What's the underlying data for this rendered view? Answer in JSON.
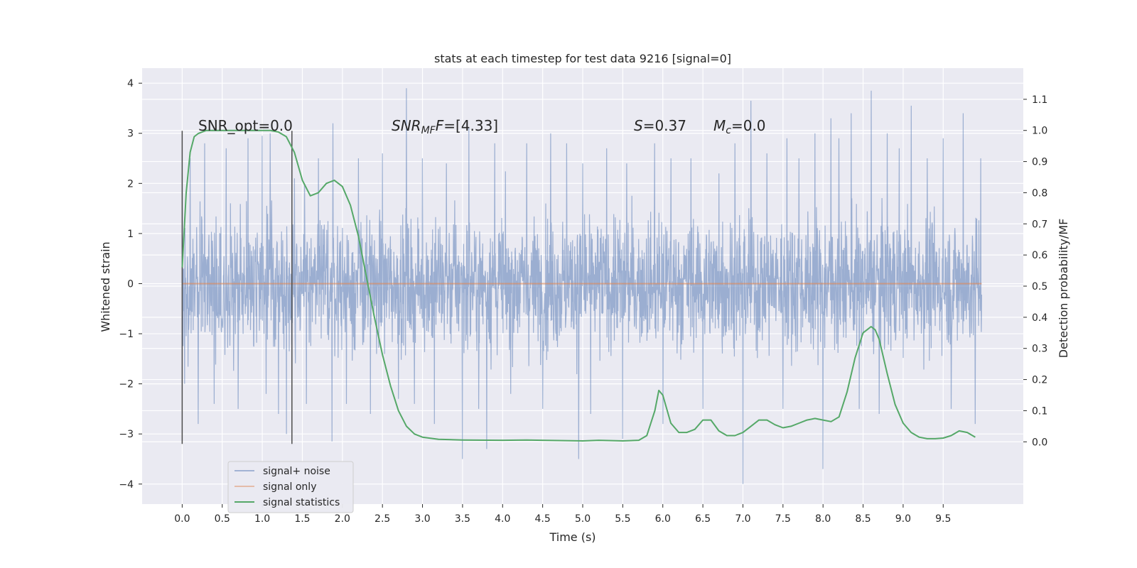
{
  "chart_data": {
    "type": "line",
    "title": "stats at each timestep for test data 9216 [signal=0]",
    "xlabel": "Time (s)",
    "ylabel": "Whitened strain",
    "ylabel_right": "Detection probability/MF",
    "xlim": [
      -0.5,
      10.5
    ],
    "ylim": [
      -4.4,
      4.3
    ],
    "ylim_right": [
      -0.2,
      1.2
    ],
    "x_ticks": [
      "0.0",
      "0.5",
      "1.0",
      "1.5",
      "2.0",
      "2.5",
      "3.0",
      "3.5",
      "4.0",
      "4.5",
      "5.0",
      "5.5",
      "6.0",
      "6.5",
      "7.0",
      "7.5",
      "8.0",
      "8.5",
      "9.0",
      "9.5"
    ],
    "x_tick_values": [
      0,
      0.5,
      1,
      1.5,
      2,
      2.5,
      3,
      3.5,
      4,
      4.5,
      5,
      5.5,
      6,
      6.5,
      7,
      7.5,
      8,
      8.5,
      9,
      9.5
    ],
    "y_ticks": [
      "−4",
      "−3",
      "−2",
      "−1",
      "0",
      "1",
      "2",
      "3",
      "4"
    ],
    "y_tick_values": [
      -4,
      -3,
      -2,
      -1,
      0,
      1,
      2,
      3,
      4
    ],
    "y_ticks_right": [
      "0.0",
      "0.1",
      "0.2",
      "0.3",
      "0.4",
      "0.5",
      "0.6",
      "0.7",
      "0.8",
      "0.9",
      "1.0",
      "1.1"
    ],
    "y_tick_values_right": [
      0,
      0.1,
      0.2,
      0.3,
      0.4,
      0.5,
      0.6,
      0.7,
      0.8,
      0.9,
      1.0,
      1.1
    ],
    "grid": true,
    "legend_position": "lower-left",
    "colors": {
      "noise": "#4c72b0",
      "signal": "#dd8452",
      "stats": "#55a868",
      "background": "#eaeaf2",
      "vline": "#4d4d4d"
    },
    "series": [
      {
        "name": "signal+ noise",
        "axis": "left",
        "style": "dense-noise",
        "x_range": [
          0,
          9.98
        ],
        "envelope_typical": [
          -1.9,
          1.9
        ],
        "spikes": [
          [
            0.0,
            2.2
          ],
          [
            0.03,
            -2.0
          ],
          [
            0.1,
            2.5
          ],
          [
            0.2,
            -2.8
          ],
          [
            0.28,
            2.8
          ],
          [
            0.4,
            -2.4
          ],
          [
            0.55,
            2.7
          ],
          [
            0.7,
            -2.5
          ],
          [
            0.82,
            2.9
          ],
          [
            1.0,
            2.95
          ],
          [
            1.05,
            -2.2
          ],
          [
            1.1,
            3.0
          ],
          [
            1.2,
            -2.6
          ],
          [
            1.3,
            -3.0
          ],
          [
            1.4,
            2.1
          ],
          [
            1.55,
            -2.4
          ],
          [
            1.7,
            2.5
          ],
          [
            1.87,
            -3.15
          ],
          [
            1.88,
            3.2
          ],
          [
            2.05,
            -2.4
          ],
          [
            2.2,
            2.5
          ],
          [
            2.35,
            -2.6
          ],
          [
            2.5,
            2.6
          ],
          [
            2.7,
            -2.3
          ],
          [
            2.8,
            3.9
          ],
          [
            2.9,
            -2.4
          ],
          [
            3.0,
            2.5
          ],
          [
            3.15,
            -2.8
          ],
          [
            3.3,
            2.4
          ],
          [
            3.5,
            -3.5
          ],
          [
            3.58,
            3.1
          ],
          [
            3.7,
            -2.5
          ],
          [
            3.8,
            -3.3
          ],
          [
            3.9,
            2.8
          ],
          [
            4.1,
            -2.2
          ],
          [
            4.3,
            2.8
          ],
          [
            4.5,
            -2.5
          ],
          [
            4.6,
            3.0
          ],
          [
            4.8,
            2.8
          ],
          [
            4.95,
            -3.5
          ],
          [
            5.0,
            2.4
          ],
          [
            5.1,
            -2.6
          ],
          [
            5.3,
            2.7
          ],
          [
            5.5,
            -3.1
          ],
          [
            5.55,
            2.4
          ],
          [
            5.9,
            2.8
          ],
          [
            6.0,
            -2.8
          ],
          [
            6.1,
            2.5
          ],
          [
            6.35,
            2.5
          ],
          [
            6.5,
            -2.5
          ],
          [
            6.7,
            2.2
          ],
          [
            6.9,
            2.8
          ],
          [
            7.0,
            -4.0
          ],
          [
            7.1,
            3.65
          ],
          [
            7.3,
            2.6
          ],
          [
            7.5,
            -2.5
          ],
          [
            7.55,
            2.9
          ],
          [
            7.7,
            2.5
          ],
          [
            7.9,
            3.0
          ],
          [
            8.0,
            -3.7
          ],
          [
            8.1,
            3.3
          ],
          [
            8.2,
            2.9
          ],
          [
            8.35,
            3.4
          ],
          [
            8.45,
            -2.5
          ],
          [
            8.6,
            3.85
          ],
          [
            8.7,
            -2.6
          ],
          [
            8.8,
            3.0
          ],
          [
            8.95,
            2.7
          ],
          [
            9.1,
            3.55
          ],
          [
            9.3,
            2.5
          ],
          [
            9.5,
            2.9
          ],
          [
            9.6,
            -2.5
          ],
          [
            9.75,
            3.4
          ],
          [
            9.9,
            -2.8
          ],
          [
            9.97,
            2.5
          ]
        ]
      },
      {
        "name": "signal only",
        "axis": "left",
        "x": [
          0,
          9.98
        ],
        "y": [
          0,
          0
        ]
      },
      {
        "name": "signal statistics",
        "axis": "right",
        "x": [
          0,
          0.05,
          0.1,
          0.15,
          0.2,
          0.3,
          0.5,
          0.8,
          1.0,
          1.1,
          1.2,
          1.3,
          1.4,
          1.5,
          1.6,
          1.7,
          1.8,
          1.9,
          2.0,
          2.1,
          2.2,
          2.3,
          2.4,
          2.5,
          2.6,
          2.7,
          2.8,
          2.9,
          3.0,
          3.2,
          3.5,
          4.0,
          4.3,
          4.5,
          5.0,
          5.2,
          5.5,
          5.7,
          5.8,
          5.9,
          5.95,
          6.0,
          6.1,
          6.2,
          6.3,
          6.4,
          6.5,
          6.6,
          6.7,
          6.8,
          6.9,
          7.0,
          7.1,
          7.2,
          7.3,
          7.4,
          7.5,
          7.6,
          7.7,
          7.8,
          7.9,
          8.0,
          8.1,
          8.2,
          8.3,
          8.4,
          8.5,
          8.55,
          8.6,
          8.65,
          8.7,
          8.8,
          8.9,
          9.0,
          9.1,
          9.2,
          9.3,
          9.4,
          9.5,
          9.6,
          9.7,
          9.8,
          9.9
        ],
        "y": [
          0.56,
          0.8,
          0.93,
          0.98,
          0.99,
          1.0,
          1.0,
          1.0,
          1.0,
          1.0,
          0.995,
          0.98,
          0.93,
          0.84,
          0.79,
          0.8,
          0.83,
          0.84,
          0.82,
          0.76,
          0.66,
          0.53,
          0.4,
          0.28,
          0.18,
          0.1,
          0.05,
          0.025,
          0.015,
          0.008,
          0.006,
          0.005,
          0.006,
          0.005,
          0.003,
          0.005,
          0.003,
          0.005,
          0.02,
          0.1,
          0.165,
          0.15,
          0.06,
          0.03,
          0.03,
          0.04,
          0.07,
          0.07,
          0.035,
          0.02,
          0.02,
          0.03,
          0.05,
          0.07,
          0.07,
          0.055,
          0.045,
          0.05,
          0.06,
          0.07,
          0.075,
          0.07,
          0.065,
          0.08,
          0.16,
          0.27,
          0.35,
          0.36,
          0.37,
          0.36,
          0.33,
          0.22,
          0.12,
          0.06,
          0.03,
          0.015,
          0.01,
          0.01,
          0.012,
          0.02,
          0.035,
          0.03,
          0.015
        ]
      }
    ],
    "vlines": [
      {
        "x": 0.0,
        "ymin": -3.2,
        "ymax": 3.05
      },
      {
        "x": 1.37,
        "ymin": -3.2,
        "ymax": 3.05
      }
    ],
    "annotations": {
      "snr_opt": "SNR_opt=0.0",
      "snr_mf_main": "SNR",
      "snr_mf_sub": "MF",
      "snr_mf_rest": "=[4.33]",
      "s_main": "S",
      "s_rest": "=0.37",
      "mc_main": "M",
      "mc_sub": "c",
      "mc_rest": "=0.0"
    }
  }
}
